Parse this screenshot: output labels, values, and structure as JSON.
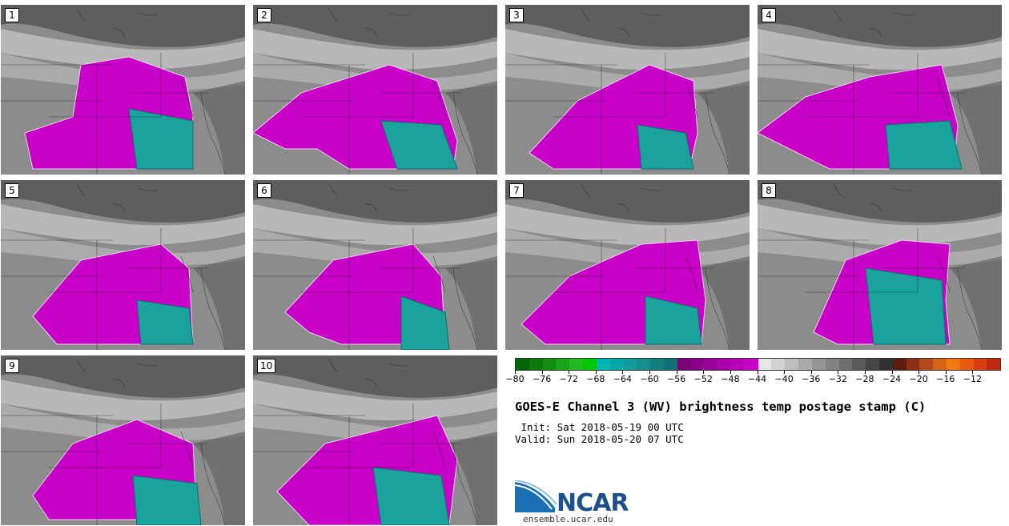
{
  "panels": [
    {
      "label": "1"
    },
    {
      "label": "2"
    },
    {
      "label": "3"
    },
    {
      "label": "4"
    },
    {
      "label": "5"
    },
    {
      "label": "6"
    },
    {
      "label": "7"
    },
    {
      "label": "8"
    },
    {
      "label": "9"
    },
    {
      "label": "10"
    }
  ],
  "colors": {
    "magenta": "#c800c8",
    "teal": "#1aa39d",
    "gray_dark": "#5e5e5e",
    "gray_mid": "#8c8c8c",
    "gray_light": "#b8b8b8",
    "white_band": "#e6e6e6"
  },
  "colorbar": {
    "colors": [
      "#006400",
      "#0a7a0a",
      "#128f12",
      "#1aa41a",
      "#22b922",
      "#00c800",
      "#00b5b5",
      "#00a8a8",
      "#139b9b",
      "#178e8e",
      "#137f7f",
      "#0f7272",
      "#7a007a",
      "#8a008a",
      "#9a009a",
      "#aa00aa",
      "#ba00ba",
      "#c800c8",
      "#e6e6e6",
      "#d2d2d2",
      "#bebebe",
      "#aaaaaa",
      "#969696",
      "#828282",
      "#6e6e6e",
      "#5a5a5a",
      "#464646",
      "#323232",
      "#5a1e10",
      "#8a3016",
      "#b44a1c",
      "#d86418",
      "#f07810",
      "#e85a12",
      "#d83e10",
      "#c02a0e"
    ],
    "tick_labels": [
      "−80",
      "−76",
      "−72",
      "−68",
      "−64",
      "−60",
      "−56",
      "−52",
      "−48",
      "−44",
      "−40",
      "−36",
      "−32",
      "−28",
      "−24",
      "−20",
      "−16",
      "−12"
    ]
  },
  "title": "GOES-E Channel 3 (WV) brightness temp postage stamp (C)",
  "init_line": " Init: Sat 2018-05-19 00 UTC",
  "valid_line": "Valid: Sun 2018-05-20 07 UTC",
  "logo_text": "NCAR",
  "website": "ensemble.ucar.edu"
}
